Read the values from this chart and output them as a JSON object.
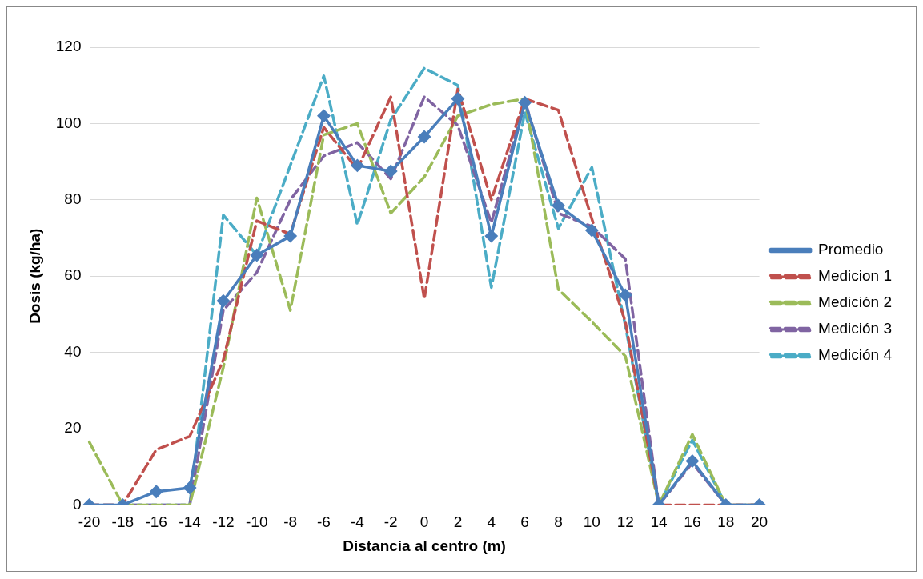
{
  "chart_data": {
    "type": "line",
    "xlabel": "Distancia al centro (m)",
    "ylabel": "Dosis (kg/ha)",
    "categories": [
      "-20",
      "-18",
      "-16",
      "-14",
      "-12",
      "-10",
      "-8",
      "-6",
      "-4",
      "-2",
      "0",
      "2",
      "4",
      "6",
      "8",
      "10",
      "12",
      "14",
      "16",
      "18",
      "20"
    ],
    "ylim": [
      0,
      120
    ],
    "yticks": [
      0,
      20,
      40,
      60,
      80,
      100,
      120
    ],
    "grid": "y",
    "legend": "right",
    "series": [
      {
        "name": "Promedio",
        "color": "#4a7ebb",
        "marker": "diamond",
        "line_style": "solid",
        "values": [
          0,
          0,
          3.5,
          4.5,
          53.5,
          65.5,
          70.5,
          102,
          89,
          87.5,
          96.5,
          106.5,
          70.5,
          105.5,
          78.5,
          72,
          55,
          0,
          11.5,
          0,
          0
        ]
      },
      {
        "name": "Medicion 1",
        "color": "#c0504d",
        "marker": "none",
        "line_style": "dashed",
        "values": [
          0,
          0,
          14.5,
          18,
          38,
          74.5,
          71,
          99,
          88,
          107,
          54,
          109,
          80,
          106.5,
          103.5,
          75,
          48,
          0,
          0,
          0,
          0
        ]
      },
      {
        "name": "Medición 2",
        "color": "#9bbb59",
        "marker": "none",
        "line_style": "dashed",
        "values": [
          16.5,
          0,
          0,
          0,
          36,
          80.5,
          51,
          97,
          100,
          76.5,
          86,
          102,
          105,
          106.5,
          56.5,
          48,
          39,
          0,
          18.5,
          0,
          0
        ]
      },
      {
        "name": "Medición 3",
        "color": "#8064a2",
        "marker": "none",
        "line_style": "dashed",
        "values": [
          0,
          0,
          0,
          0,
          51,
          61,
          80,
          91.5,
          95,
          85.5,
          107,
          99.5,
          74,
          106,
          76.5,
          73,
          64.5,
          0,
          11,
          0,
          0
        ]
      },
      {
        "name": "Medición 4",
        "color": "#4bacc6",
        "marker": "none",
        "line_style": "dashed",
        "values": [
          0,
          0,
          0,
          0,
          76,
          65.5,
          89,
          112.5,
          73.5,
          101,
          114.5,
          110,
          57,
          103,
          72.5,
          88.5,
          47,
          0,
          17,
          0,
          0
        ]
      }
    ]
  }
}
